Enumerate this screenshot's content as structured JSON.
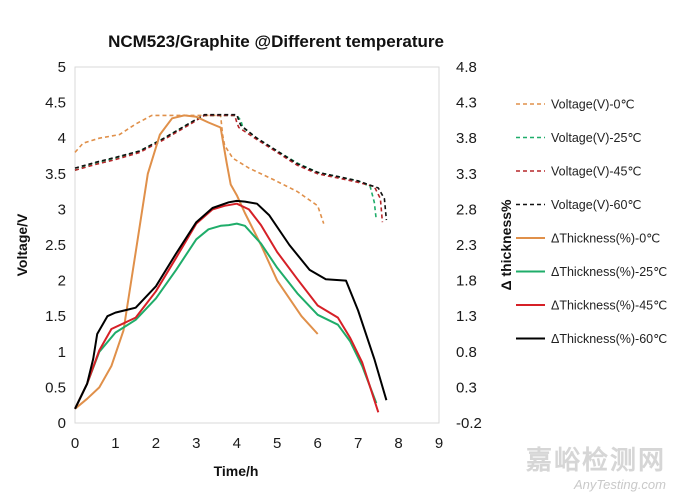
{
  "chart_data": {
    "type": "line",
    "title": "NCM523/Graphite @Different temperature",
    "xlabel": "Time/h",
    "ylabel": "Voltage/V",
    "y2label": "Δ thickness%",
    "xlim": [
      0,
      9
    ],
    "ylim": [
      0,
      5
    ],
    "y2lim": [
      -0.2,
      4.8
    ],
    "xticks": [
      "0",
      "1",
      "2",
      "3",
      "4",
      "5",
      "6",
      "7",
      "8",
      "9"
    ],
    "yticks": [
      "0",
      "0.5",
      "1",
      "1.5",
      "2",
      "2.5",
      "3",
      "3.5",
      "4",
      "4.5",
      "5"
    ],
    "y2ticks": [
      "-0.2",
      "0.3",
      "0.8",
      "1.3",
      "1.8",
      "2.3",
      "2.8",
      "3.3",
      "3.8",
      "4.3",
      "4.8"
    ],
    "grid": false,
    "legend_position": "right",
    "series": [
      {
        "name": "Voltage(V)-0℃",
        "axis": "left",
        "style": "dashed",
        "color": "#e0904a",
        "x": [
          0,
          0.2,
          0.6,
          1.1,
          1.5,
          1.9,
          2.5,
          3.2,
          3.6,
          3.65,
          3.7,
          3.9,
          4.3,
          4.9,
          5.5,
          6.0,
          6.15
        ],
        "y": [
          3.8,
          3.93,
          4.0,
          4.05,
          4.2,
          4.32,
          4.32,
          4.32,
          4.32,
          4.05,
          3.9,
          3.72,
          3.58,
          3.42,
          3.25,
          3.05,
          2.8
        ]
      },
      {
        "name": "Voltage(V)-25℃",
        "axis": "left",
        "style": "dashed",
        "color": "#1fad6a",
        "x": [
          0,
          0.5,
          1.0,
          1.6,
          2.2,
          2.8,
          3.2,
          3.6,
          4.0,
          4.1,
          4.15,
          4.5,
          5.0,
          5.5,
          6.0,
          6.6,
          7.0,
          7.3,
          7.4,
          7.45
        ],
        "y": [
          3.55,
          3.65,
          3.72,
          3.82,
          4.0,
          4.2,
          4.32,
          4.32,
          4.32,
          4.25,
          4.15,
          4.0,
          3.82,
          3.65,
          3.52,
          3.45,
          3.4,
          3.32,
          3.1,
          2.85
        ]
      },
      {
        "name": "Voltage(V)-45℃",
        "axis": "left",
        "style": "dashed",
        "color": "#b5272a",
        "x": [
          0,
          0.5,
          1.0,
          1.6,
          2.2,
          2.8,
          3.2,
          3.6,
          3.95,
          4.0,
          4.05,
          4.5,
          5.0,
          5.5,
          6.0,
          6.6,
          7.0,
          7.4,
          7.55,
          7.6
        ],
        "y": [
          3.55,
          3.63,
          3.7,
          3.8,
          3.98,
          4.18,
          4.32,
          4.32,
          4.32,
          4.22,
          4.15,
          3.98,
          3.8,
          3.62,
          3.5,
          3.43,
          3.38,
          3.32,
          3.15,
          2.82
        ]
      },
      {
        "name": "Voltage(V)-60℃",
        "axis": "left",
        "style": "dashed",
        "color": "#111111",
        "x": [
          0,
          0.5,
          1.0,
          1.6,
          2.2,
          2.8,
          3.2,
          3.6,
          4.0,
          4.05,
          4.1,
          4.5,
          5.0,
          5.5,
          6.0,
          6.6,
          7.0,
          7.5,
          7.65,
          7.7
        ],
        "y": [
          3.58,
          3.66,
          3.73,
          3.82,
          4.0,
          4.2,
          4.33,
          4.33,
          4.33,
          4.25,
          4.18,
          4.0,
          3.82,
          3.64,
          3.52,
          3.45,
          3.4,
          3.3,
          3.15,
          2.85
        ]
      },
      {
        "name": "ΔThickness(%)-0℃",
        "axis": "right",
        "style": "solid",
        "color": "#e0904a",
        "x": [
          0,
          0.3,
          0.6,
          0.9,
          1.2,
          1.5,
          1.8,
          2.1,
          2.4,
          2.7,
          3.0,
          3.3,
          3.6,
          3.75,
          3.85,
          4.0,
          4.2,
          4.6,
          5.0,
          5.6,
          6.0
        ],
        "y": [
          0,
          0.14,
          0.3,
          0.6,
          1.1,
          2.2,
          3.3,
          3.85,
          4.08,
          4.12,
          4.1,
          4.02,
          3.95,
          3.45,
          3.15,
          3.0,
          2.75,
          2.3,
          1.8,
          1.3,
          1.05
        ]
      },
      {
        "name": "ΔThickness(%)-25℃",
        "axis": "right",
        "style": "solid",
        "color": "#1fad6a",
        "x": [
          0,
          0.3,
          0.6,
          1.0,
          1.5,
          2.0,
          2.5,
          3.0,
          3.3,
          3.6,
          3.8,
          4.0,
          4.2,
          4.6,
          5.0,
          5.5,
          6.0,
          6.5,
          6.8,
          7.1,
          7.45
        ],
        "y": [
          0,
          0.35,
          0.8,
          1.07,
          1.25,
          1.55,
          1.95,
          2.38,
          2.52,
          2.57,
          2.58,
          2.6,
          2.57,
          2.32,
          1.98,
          1.62,
          1.32,
          1.18,
          0.95,
          0.6,
          0.08
        ]
      },
      {
        "name": "ΔThickness(%)-45℃",
        "axis": "right",
        "style": "solid",
        "color": "#d62027",
        "x": [
          0,
          0.3,
          0.6,
          0.9,
          1.5,
          2.0,
          2.5,
          3.0,
          3.4,
          3.7,
          4.0,
          4.3,
          4.6,
          5.0,
          5.5,
          6.0,
          6.5,
          6.8,
          7.1,
          7.5
        ],
        "y": [
          0,
          0.35,
          0.82,
          1.12,
          1.28,
          1.65,
          2.12,
          2.6,
          2.8,
          2.85,
          2.88,
          2.8,
          2.58,
          2.2,
          1.82,
          1.45,
          1.28,
          1.0,
          0.65,
          -0.05
        ]
      },
      {
        "name": "ΔThickness(%)-60℃",
        "axis": "right",
        "style": "solid",
        "color": "#000000",
        "x": [
          0,
          0.3,
          0.45,
          0.55,
          0.8,
          1.0,
          1.5,
          2.0,
          2.5,
          3.0,
          3.4,
          3.8,
          4.0,
          4.2,
          4.5,
          4.8,
          5.3,
          5.8,
          6.2,
          6.7,
          7.0,
          7.4,
          7.7
        ],
        "y": [
          0,
          0.35,
          0.7,
          1.05,
          1.3,
          1.35,
          1.42,
          1.72,
          2.18,
          2.62,
          2.82,
          2.9,
          2.92,
          2.91,
          2.88,
          2.72,
          2.3,
          1.95,
          1.82,
          1.8,
          1.38,
          0.7,
          0.12
        ]
      }
    ]
  },
  "watermark": {
    "cn": "嘉峪检测网",
    "en": "AnyTesting.com"
  }
}
